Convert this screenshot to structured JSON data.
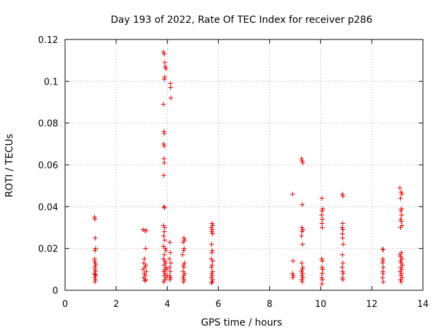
{
  "chart_data": {
    "type": "scatter",
    "title": "Day 193 of 2022, Rate Of TEC Index for receiver p286",
    "xlabel": "GPS time / hours",
    "ylabel": "ROTI / TECUs",
    "xlim": [
      0,
      14
    ],
    "ylim": [
      0,
      0.12
    ],
    "xticks": [
      "0",
      "2",
      "4",
      "6",
      "8",
      "10",
      "12",
      "14"
    ],
    "xtick_values": [
      0,
      2,
      4,
      6,
      8,
      10,
      12,
      14
    ],
    "yticks": [
      "0",
      "0.02",
      "0.04",
      "0.06",
      "0.08",
      "0.1",
      "0.12"
    ],
    "ytick_values": [
      0,
      0.02,
      0.04,
      0.06,
      0.08,
      0.1,
      0.12
    ],
    "grid": true,
    "legend": "none",
    "marker": "plus",
    "marker_color": "#dd0000",
    "points": [
      [
        1.15,
        0.035
      ],
      [
        1.17,
        0.034
      ],
      [
        1.18,
        0.025
      ],
      [
        1.2,
        0.02
      ],
      [
        1.17,
        0.019
      ],
      [
        1.16,
        0.015
      ],
      [
        1.15,
        0.014
      ],
      [
        1.18,
        0.013
      ],
      [
        1.2,
        0.012
      ],
      [
        1.16,
        0.011
      ],
      [
        1.17,
        0.01
      ],
      [
        1.19,
        0.009
      ],
      [
        1.15,
        0.008
      ],
      [
        1.18,
        0.0075
      ],
      [
        1.2,
        0.007
      ],
      [
        1.16,
        0.006
      ],
      [
        1.19,
        0.005
      ],
      [
        1.17,
        0.004
      ],
      [
        3.05,
        0.029
      ],
      [
        3.12,
        0.0285
      ],
      [
        3.18,
        0.0285
      ],
      [
        3.15,
        0.02
      ],
      [
        3.1,
        0.015
      ],
      [
        3.08,
        0.013
      ],
      [
        3.16,
        0.012
      ],
      [
        3.12,
        0.011
      ],
      [
        3.05,
        0.01
      ],
      [
        3.18,
        0.009
      ],
      [
        3.1,
        0.008
      ],
      [
        3.14,
        0.007
      ],
      [
        3.08,
        0.006
      ],
      [
        3.16,
        0.005
      ],
      [
        3.12,
        0.0045
      ],
      [
        3.85,
        0.114
      ],
      [
        3.88,
        0.113
      ],
      [
        3.9,
        0.109
      ],
      [
        3.92,
        0.107
      ],
      [
        3.95,
        0.106
      ],
      [
        3.9,
        0.102
      ],
      [
        3.88,
        0.101
      ],
      [
        3.85,
        0.089
      ],
      [
        3.87,
        0.076
      ],
      [
        3.88,
        0.075
      ],
      [
        3.86,
        0.07
      ],
      [
        3.88,
        0.069
      ],
      [
        3.87,
        0.063
      ],
      [
        3.88,
        0.061
      ],
      [
        3.86,
        0.055
      ],
      [
        3.87,
        0.04
      ],
      [
        3.89,
        0.0395
      ],
      [
        3.85,
        0.031
      ],
      [
        3.9,
        0.03
      ],
      [
        3.88,
        0.028
      ],
      [
        3.86,
        0.026
      ],
      [
        3.9,
        0.024
      ],
      [
        3.85,
        0.021
      ],
      [
        3.92,
        0.02
      ],
      [
        3.95,
        0.019
      ],
      [
        3.88,
        0.017
      ],
      [
        3.85,
        0.015
      ],
      [
        3.9,
        0.014
      ],
      [
        3.93,
        0.013
      ],
      [
        3.87,
        0.012
      ],
      [
        3.95,
        0.011
      ],
      [
        3.9,
        0.01
      ],
      [
        3.86,
        0.009
      ],
      [
        3.92,
        0.008
      ],
      [
        3.88,
        0.007
      ],
      [
        3.95,
        0.006
      ],
      [
        3.9,
        0.005
      ],
      [
        3.86,
        0.004
      ],
      [
        3.98,
        0.01
      ],
      [
        4.0,
        0.007
      ],
      [
        4.12,
        0.099
      ],
      [
        4.13,
        0.097
      ],
      [
        4.14,
        0.092
      ],
      [
        4.1,
        0.023
      ],
      [
        4.12,
        0.018
      ],
      [
        4.08,
        0.015
      ],
      [
        4.14,
        0.013
      ],
      [
        4.1,
        0.011
      ],
      [
        4.12,
        0.009
      ],
      [
        4.09,
        0.007
      ],
      [
        4.13,
        0.006
      ],
      [
        4.1,
        0.005
      ],
      [
        4.65,
        0.025
      ],
      [
        4.68,
        0.024
      ],
      [
        4.62,
        0.023
      ],
      [
        4.66,
        0.02
      ],
      [
        4.64,
        0.019
      ],
      [
        4.6,
        0.017
      ],
      [
        4.67,
        0.013
      ],
      [
        4.63,
        0.012
      ],
      [
        4.65,
        0.011
      ],
      [
        4.61,
        0.009
      ],
      [
        4.68,
        0.008
      ],
      [
        4.64,
        0.007
      ],
      [
        4.62,
        0.006
      ],
      [
        4.66,
        0.005
      ],
      [
        4.63,
        0.004
      ],
      [
        5.75,
        0.032
      ],
      [
        5.78,
        0.031
      ],
      [
        5.72,
        0.03
      ],
      [
        5.76,
        0.029
      ],
      [
        5.74,
        0.028
      ],
      [
        5.77,
        0.027
      ],
      [
        5.73,
        0.022
      ],
      [
        5.76,
        0.019
      ],
      [
        5.74,
        0.018
      ],
      [
        5.72,
        0.015
      ],
      [
        5.78,
        0.014
      ],
      [
        5.75,
        0.012
      ],
      [
        5.73,
        0.011
      ],
      [
        5.77,
        0.009
      ],
      [
        5.74,
        0.008
      ],
      [
        5.76,
        0.007
      ],
      [
        5.72,
        0.006
      ],
      [
        5.78,
        0.005
      ],
      [
        5.75,
        0.004
      ],
      [
        5.73,
        0.0035
      ],
      [
        8.9,
        0.046
      ],
      [
        8.92,
        0.014
      ],
      [
        8.9,
        0.008
      ],
      [
        8.93,
        0.007
      ],
      [
        8.91,
        0.006
      ],
      [
        9.25,
        0.063
      ],
      [
        9.27,
        0.062
      ],
      [
        9.3,
        0.061
      ],
      [
        9.28,
        0.041
      ],
      [
        9.26,
        0.03
      ],
      [
        9.3,
        0.029
      ],
      [
        9.27,
        0.028
      ],
      [
        9.25,
        0.026
      ],
      [
        9.29,
        0.022
      ],
      [
        9.26,
        0.013
      ],
      [
        9.3,
        0.011
      ],
      [
        9.28,
        0.01
      ],
      [
        9.25,
        0.009
      ],
      [
        9.29,
        0.008
      ],
      [
        9.27,
        0.007
      ],
      [
        9.3,
        0.006
      ],
      [
        9.26,
        0.005
      ],
      [
        9.28,
        0.004
      ],
      [
        10.05,
        0.044
      ],
      [
        10.08,
        0.039
      ],
      [
        10.06,
        0.038
      ],
      [
        10.04,
        0.036
      ],
      [
        10.07,
        0.034
      ],
      [
        10.05,
        0.032
      ],
      [
        10.06,
        0.03
      ],
      [
        10.04,
        0.015
      ],
      [
        10.07,
        0.014
      ],
      [
        10.05,
        0.011
      ],
      [
        10.08,
        0.01
      ],
      [
        10.06,
        0.008
      ],
      [
        10.04,
        0.006
      ],
      [
        10.07,
        0.005
      ],
      [
        10.05,
        0.003
      ],
      [
        10.85,
        0.046
      ],
      [
        10.87,
        0.045
      ],
      [
        10.86,
        0.032
      ],
      [
        10.84,
        0.03
      ],
      [
        10.87,
        0.029
      ],
      [
        10.85,
        0.027
      ],
      [
        10.86,
        0.025
      ],
      [
        10.88,
        0.022
      ],
      [
        10.85,
        0.017
      ],
      [
        10.87,
        0.013
      ],
      [
        10.84,
        0.011
      ],
      [
        10.86,
        0.009
      ],
      [
        10.88,
        0.008
      ],
      [
        10.85,
        0.006
      ],
      [
        10.87,
        0.005
      ],
      [
        12.42,
        0.0195
      ],
      [
        12.45,
        0.0195
      ],
      [
        12.43,
        0.015
      ],
      [
        12.44,
        0.014
      ],
      [
        12.42,
        0.013
      ],
      [
        12.45,
        0.011
      ],
      [
        12.43,
        0.009
      ],
      [
        12.44,
        0.008
      ],
      [
        12.42,
        0.006
      ],
      [
        12.45,
        0.004
      ],
      [
        13.1,
        0.049
      ],
      [
        13.15,
        0.047
      ],
      [
        13.18,
        0.046
      ],
      [
        13.12,
        0.044
      ],
      [
        13.16,
        0.039
      ],
      [
        13.14,
        0.038
      ],
      [
        13.17,
        0.036
      ],
      [
        13.13,
        0.034
      ],
      [
        13.15,
        0.033
      ],
      [
        13.18,
        0.031
      ],
      [
        13.12,
        0.03
      ],
      [
        13.16,
        0.018
      ],
      [
        13.1,
        0.017
      ],
      [
        13.14,
        0.016
      ],
      [
        13.18,
        0.015
      ],
      [
        13.12,
        0.014
      ],
      [
        13.15,
        0.013
      ],
      [
        13.2,
        0.012
      ],
      [
        13.13,
        0.011
      ],
      [
        13.17,
        0.01
      ],
      [
        13.11,
        0.009
      ],
      [
        13.16,
        0.008
      ],
      [
        13.14,
        0.007
      ],
      [
        13.19,
        0.006
      ],
      [
        13.12,
        0.005
      ],
      [
        13.15,
        0.004
      ]
    ]
  }
}
